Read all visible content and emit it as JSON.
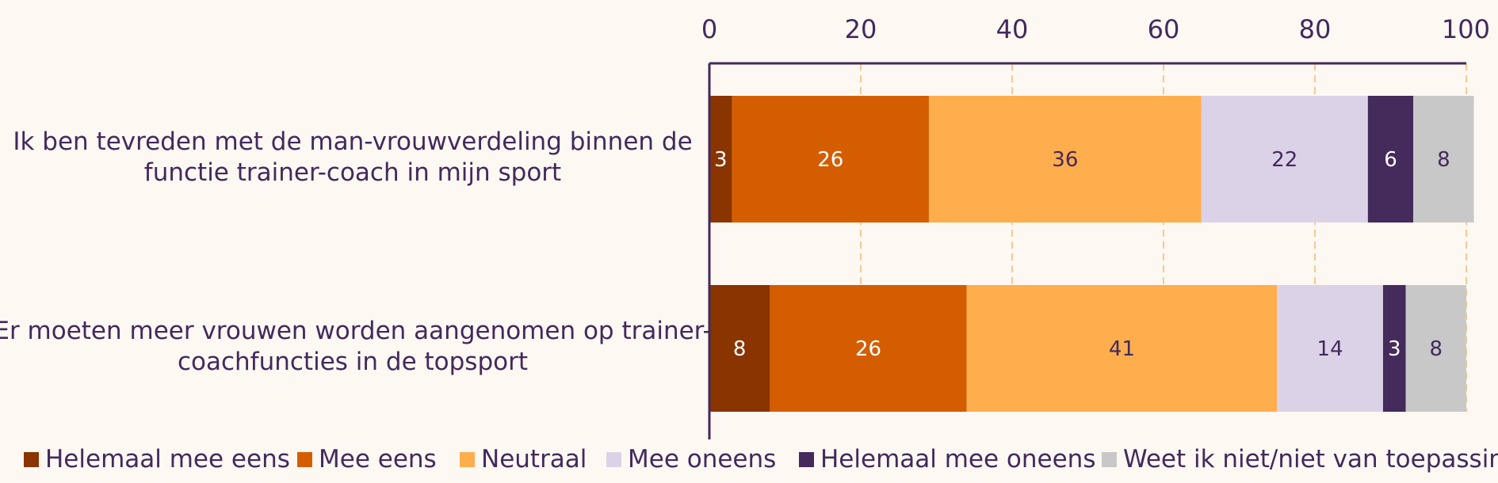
{
  "chart_data": {
    "type": "bar",
    "orientation": "horizontal",
    "stacked": true,
    "categories": [
      "Ik ben tevreden met de man-vrouwverdeling binnen de functie trainer-coach in mijn sport",
      "Er moeten meer vrouwen worden aangenomen op trainer-coachfuncties in de topsport"
    ],
    "category_lines": [
      [
        "Ik ben tevreden met de man-vrouwverdeling binnen de",
        "functie trainer-coach in mijn sport"
      ],
      [
        "Er moeten meer vrouwen worden aangenomen op trainer-",
        "coachfuncties in de topsport"
      ]
    ],
    "series": [
      {
        "name": "Helemaal mee eens",
        "color": "#8a3400",
        "label_color": "#ffffff",
        "values": [
          3,
          8
        ]
      },
      {
        "name": "Mee eens",
        "color": "#d45d00",
        "label_color": "#ffffff",
        "values": [
          26,
          26
        ]
      },
      {
        "name": "Neutraal",
        "color": "#ffad4d",
        "label_color": "#43295c",
        "values": [
          36,
          41
        ]
      },
      {
        "name": "Mee oneens",
        "color": "#dcd2e8",
        "label_color": "#43295c",
        "values": [
          22,
          14
        ]
      },
      {
        "name": "Helemaal mee oneens",
        "color": "#452a5c",
        "label_color": "#ffffff",
        "values": [
          6,
          3
        ]
      },
      {
        "name": "Weet ik niet/niet van toepassing",
        "color": "#c8c8c8",
        "label_color": "#43295c",
        "values": [
          8,
          8
        ]
      }
    ],
    "xlim": [
      0,
      100
    ],
    "xticks": [
      0,
      20,
      40,
      60,
      80,
      100
    ],
    "xaxis_position": "top",
    "grid": "vertical dashed",
    "legend_position": "bottom"
  },
  "colors": {
    "background": "#fdf8f2",
    "text": "#43295c",
    "axis": "#43295c",
    "grid": "#f7c990"
  }
}
